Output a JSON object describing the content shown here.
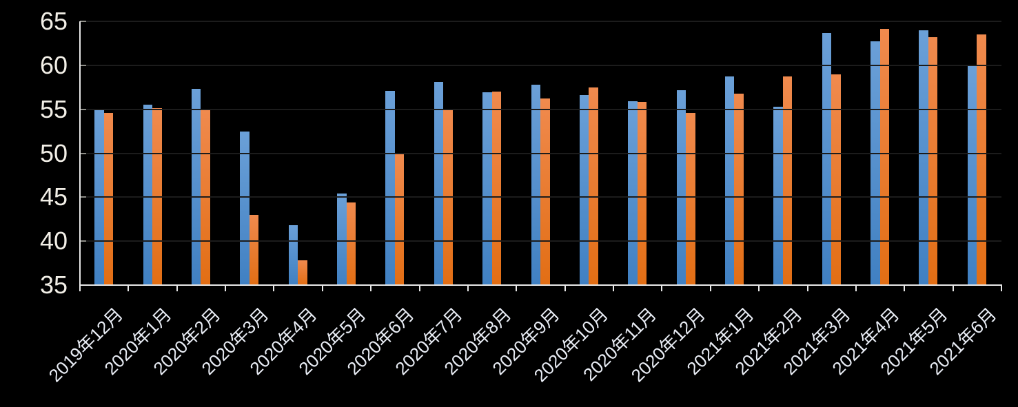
{
  "chart_data": {
    "type": "bar",
    "title": "",
    "subtitle": "",
    "legend": "none",
    "grid": true,
    "categories": [
      "2019年12月",
      "2020年1月",
      "2020年2月",
      "2020年3月",
      "2020年4月",
      "2020年5月",
      "2020年6月",
      "2020年7月",
      "2020年8月",
      "2020年9月",
      "2020年10月",
      "2020年11月",
      "2020年12月",
      "2021年1月",
      "2021年2月",
      "2021年3月",
      "2021年4月",
      "2021年5月",
      "2021年6月"
    ],
    "series": [
      {
        "name": "blue-series",
        "color_top": "#6BA0D8",
        "color_bottom": "#4080C2",
        "values": [
          55.0,
          55.5,
          57.3,
          52.5,
          41.8,
          45.4,
          57.1,
          58.1,
          56.9,
          57.8,
          56.6,
          55.9,
          57.2,
          58.7,
          55.3,
          63.7,
          62.7,
          64.0,
          60.1
        ]
      },
      {
        "name": "orange-series",
        "color_top": "#F08A4E",
        "color_bottom": "#E26E14",
        "values": [
          54.6,
          55.1,
          54.9,
          43.0,
          37.8,
          44.4,
          50.0,
          55.0,
          57.0,
          56.2,
          57.5,
          55.8,
          54.6,
          56.8,
          58.7,
          59.0,
          64.1,
          63.2,
          63.5
        ]
      }
    ],
    "xlabel": "",
    "ylabel": "",
    "ylim": [
      35,
      65
    ],
    "yticks": [
      35,
      40,
      45,
      50,
      55,
      60,
      65
    ],
    "ytick_labels": [
      "35",
      "40",
      "45",
      "50",
      "55",
      "60",
      "65"
    ],
    "xlabel_rotation_deg": -45,
    "background": "#000000",
    "gridline_color": "#1C1C1C",
    "axis_color": "#E9E9E9",
    "y_inner_tick_color": "#8F8F89",
    "ylabel_color": "#F2EFE7",
    "xlabel_color": "#E9EDF5"
  }
}
